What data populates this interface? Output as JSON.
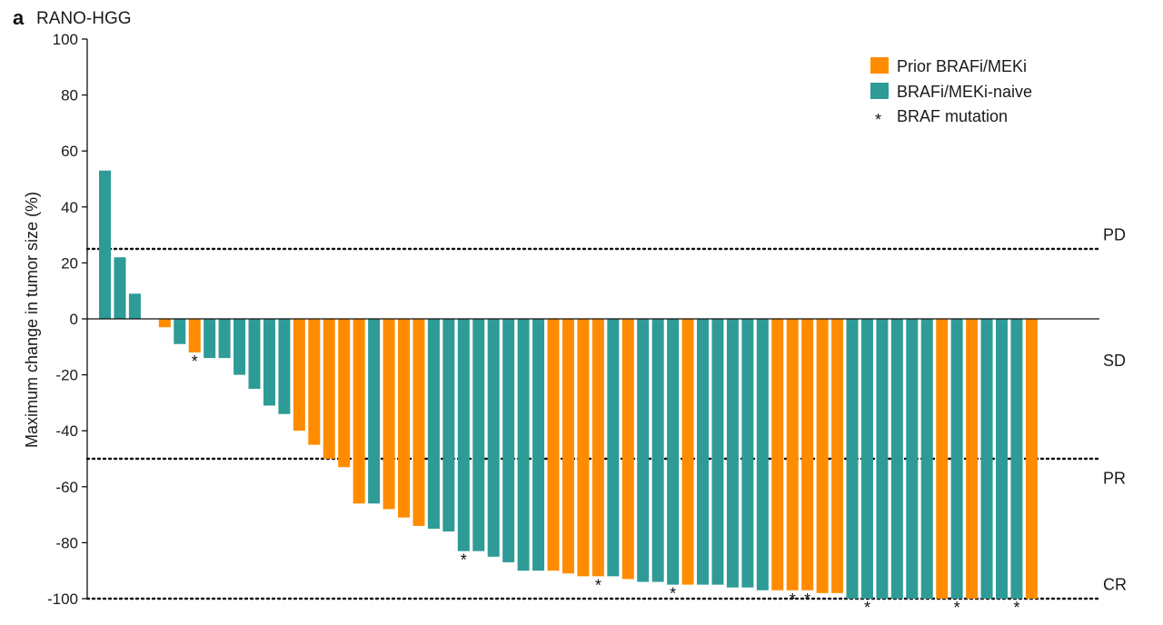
{
  "panel": {
    "letter": "a",
    "title": "RANO-HGG"
  },
  "colors": {
    "prior": "#FF8C00",
    "naive": "#2E9B96",
    "axis": "#111111"
  },
  "chart_data": {
    "type": "bar",
    "ylabel": "Maximum change in tumor size (%)",
    "ylim": [
      -100,
      100
    ],
    "yticks": [
      100,
      80,
      60,
      40,
      20,
      0,
      -20,
      -40,
      -60,
      -80,
      -100
    ],
    "grid": false,
    "legend_position": "top-right",
    "legend": [
      {
        "key": "prior",
        "label": "Prior BRAFi/MEKi"
      },
      {
        "key": "naive",
        "label": "BRAFi/MEKi-naive"
      },
      {
        "key": "mutation",
        "label": "BRAF mutation",
        "symbol": "*"
      }
    ],
    "thresholds": [
      {
        "label": "PD",
        "line": 25,
        "label_value": 30
      },
      {
        "label": "SD",
        "line": null,
        "label_value": -15
      },
      {
        "label": "PR",
        "line": -50,
        "label_value": -57
      },
      {
        "label": "CR",
        "line": -100,
        "label_value": -95
      }
    ],
    "series": [
      {
        "name": "Prior BRAFi/MEKi",
        "key": "prior"
      },
      {
        "name": "BRAFi/MEKi-naive",
        "key": "naive"
      }
    ],
    "bars": [
      {
        "value": 53,
        "group": "naive",
        "mutation": false
      },
      {
        "value": 22,
        "group": "naive",
        "mutation": false
      },
      {
        "value": 9,
        "group": "naive",
        "mutation": false
      },
      {
        "value": 0,
        "group": "naive",
        "mutation": false
      },
      {
        "value": -3,
        "group": "prior",
        "mutation": false
      },
      {
        "value": -9,
        "group": "naive",
        "mutation": false
      },
      {
        "value": -12,
        "group": "prior",
        "mutation": true
      },
      {
        "value": -14,
        "group": "naive",
        "mutation": false
      },
      {
        "value": -14,
        "group": "naive",
        "mutation": false
      },
      {
        "value": -20,
        "group": "naive",
        "mutation": false
      },
      {
        "value": -25,
        "group": "naive",
        "mutation": false
      },
      {
        "value": -31,
        "group": "naive",
        "mutation": false
      },
      {
        "value": -34,
        "group": "naive",
        "mutation": false
      },
      {
        "value": -40,
        "group": "prior",
        "mutation": false
      },
      {
        "value": -45,
        "group": "prior",
        "mutation": false
      },
      {
        "value": -50,
        "group": "prior",
        "mutation": false
      },
      {
        "value": -53,
        "group": "prior",
        "mutation": false
      },
      {
        "value": -66,
        "group": "prior",
        "mutation": false
      },
      {
        "value": -66,
        "group": "naive",
        "mutation": false
      },
      {
        "value": -68,
        "group": "prior",
        "mutation": false
      },
      {
        "value": -71,
        "group": "prior",
        "mutation": false
      },
      {
        "value": -74,
        "group": "prior",
        "mutation": false
      },
      {
        "value": -75,
        "group": "naive",
        "mutation": false
      },
      {
        "value": -76,
        "group": "naive",
        "mutation": false
      },
      {
        "value": -83,
        "group": "naive",
        "mutation": true
      },
      {
        "value": -83,
        "group": "naive",
        "mutation": false
      },
      {
        "value": -85,
        "group": "naive",
        "mutation": false
      },
      {
        "value": -87,
        "group": "naive",
        "mutation": false
      },
      {
        "value": -90,
        "group": "naive",
        "mutation": false
      },
      {
        "value": -90,
        "group": "naive",
        "mutation": false
      },
      {
        "value": -90,
        "group": "prior",
        "mutation": false
      },
      {
        "value": -91,
        "group": "prior",
        "mutation": false
      },
      {
        "value": -92,
        "group": "prior",
        "mutation": false
      },
      {
        "value": -92,
        "group": "prior",
        "mutation": true
      },
      {
        "value": -92,
        "group": "naive",
        "mutation": false
      },
      {
        "value": -93,
        "group": "prior",
        "mutation": false
      },
      {
        "value": -94,
        "group": "naive",
        "mutation": false
      },
      {
        "value": -94,
        "group": "naive",
        "mutation": false
      },
      {
        "value": -95,
        "group": "naive",
        "mutation": true
      },
      {
        "value": -95,
        "group": "prior",
        "mutation": false
      },
      {
        "value": -95,
        "group": "naive",
        "mutation": false
      },
      {
        "value": -95,
        "group": "naive",
        "mutation": false
      },
      {
        "value": -96,
        "group": "naive",
        "mutation": false
      },
      {
        "value": -96,
        "group": "naive",
        "mutation": false
      },
      {
        "value": -97,
        "group": "naive",
        "mutation": false
      },
      {
        "value": -97,
        "group": "prior",
        "mutation": false
      },
      {
        "value": -97,
        "group": "prior",
        "mutation": true
      },
      {
        "value": -97,
        "group": "prior",
        "mutation": true
      },
      {
        "value": -98,
        "group": "prior",
        "mutation": false
      },
      {
        "value": -98,
        "group": "prior",
        "mutation": false
      },
      {
        "value": -100,
        "group": "naive",
        "mutation": false
      },
      {
        "value": -100,
        "group": "naive",
        "mutation": true
      },
      {
        "value": -100,
        "group": "naive",
        "mutation": false
      },
      {
        "value": -100,
        "group": "naive",
        "mutation": false
      },
      {
        "value": -100,
        "group": "naive",
        "mutation": false
      },
      {
        "value": -100,
        "group": "naive",
        "mutation": false
      },
      {
        "value": -100,
        "group": "prior",
        "mutation": false
      },
      {
        "value": -100,
        "group": "naive",
        "mutation": true
      },
      {
        "value": -100,
        "group": "prior",
        "mutation": false
      },
      {
        "value": -100,
        "group": "naive",
        "mutation": false
      },
      {
        "value": -100,
        "group": "naive",
        "mutation": false
      },
      {
        "value": -100,
        "group": "naive",
        "mutation": true
      },
      {
        "value": -100,
        "group": "prior",
        "mutation": false
      }
    ]
  }
}
